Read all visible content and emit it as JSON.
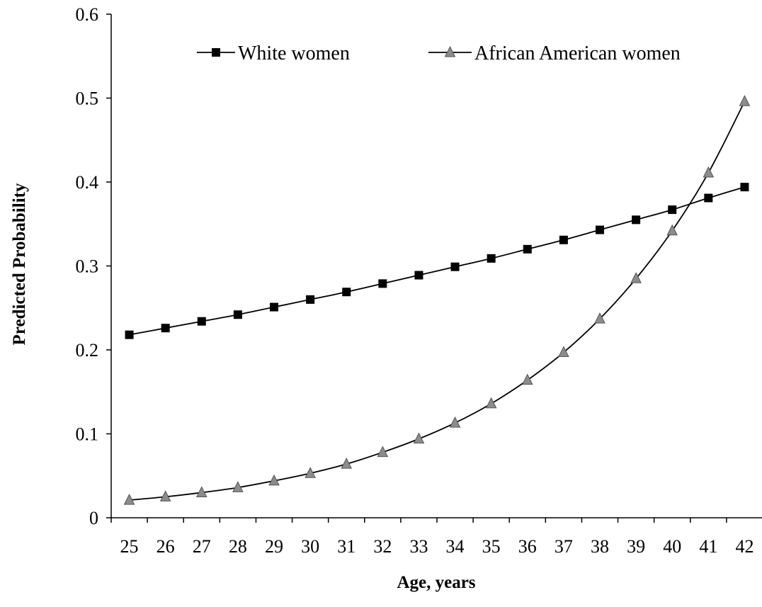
{
  "chart_data": {
    "type": "line",
    "title": "",
    "xlabel": "Age, years",
    "ylabel": "Predicted Probability",
    "categories": [
      25,
      26,
      27,
      28,
      29,
      30,
      31,
      32,
      33,
      34,
      35,
      36,
      37,
      38,
      39,
      40,
      41,
      42
    ],
    "ylim": [
      0,
      0.6
    ],
    "yticks": [
      "0",
      "0.1",
      "0.2",
      "0.3",
      "0.4",
      "0.5",
      "0.6"
    ],
    "grid": false,
    "legend_position": "top",
    "series": [
      {
        "name": "White women",
        "marker": "square",
        "color": "#000000",
        "values": [
          0.218,
          0.226,
          0.234,
          0.242,
          0.251,
          0.26,
          0.269,
          0.279,
          0.289,
          0.299,
          0.309,
          0.32,
          0.331,
          0.343,
          0.355,
          0.367,
          0.381,
          0.394
        ]
      },
      {
        "name": "African American women",
        "marker": "triangle",
        "color": "#808080",
        "values": [
          0.021,
          0.025,
          0.03,
          0.036,
          0.044,
          0.053,
          0.064,
          0.078,
          0.094,
          0.113,
          0.136,
          0.164,
          0.197,
          0.237,
          0.285,
          0.342,
          0.411,
          0.496
        ]
      }
    ]
  }
}
